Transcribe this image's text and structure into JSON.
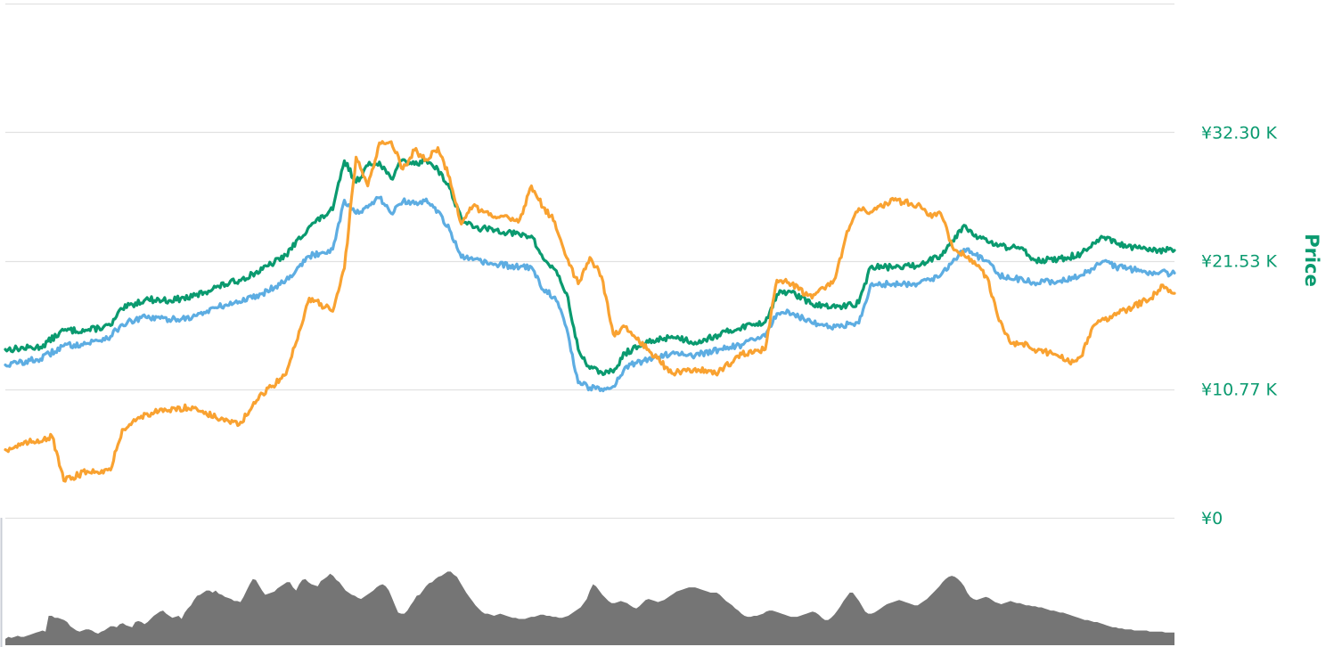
{
  "chart_data": {
    "type": "line",
    "ylabel": "Price",
    "ylim": [
      0,
      43070
    ],
    "yticks": [
      {
        "value": 0,
        "label": "¥0"
      },
      {
        "value": 10770,
        "label": "¥10.77 K"
      },
      {
        "value": 21530,
        "label": "¥21.53 K"
      },
      {
        "value": 32300,
        "label": "¥32.30 K"
      }
    ],
    "colors": {
      "axis": "#0a9a6f",
      "grid": "#e1e1e1",
      "volume": "#757575"
    },
    "x_index_range": [
      0,
      100
    ],
    "series": [
      {
        "color": "#0a9a6f",
        "points": [
          [
            0,
            14100
          ],
          [
            3,
            14300
          ],
          [
            5,
            15700
          ],
          [
            7,
            15700
          ],
          [
            9,
            16100
          ],
          [
            10,
            17500
          ],
          [
            12,
            18300
          ],
          [
            14,
            18200
          ],
          [
            16,
            18500
          ],
          [
            18,
            19300
          ],
          [
            20,
            19900
          ],
          [
            22,
            20800
          ],
          [
            24,
            22000
          ],
          [
            26,
            24400
          ],
          [
            28,
            25800
          ],
          [
            29,
            29900
          ],
          [
            30,
            28100
          ],
          [
            31,
            29500
          ],
          [
            32,
            29800
          ],
          [
            33,
            28400
          ],
          [
            34,
            30000
          ],
          [
            35,
            29600
          ],
          [
            36,
            30000
          ],
          [
            37,
            29200
          ],
          [
            38,
            27600
          ],
          [
            39,
            25100
          ],
          [
            40,
            24300
          ],
          [
            42,
            24100
          ],
          [
            44,
            23700
          ],
          [
            45,
            23600
          ],
          [
            46,
            21700
          ],
          [
            47,
            20800
          ],
          [
            48,
            18800
          ],
          [
            49,
            14100
          ],
          [
            50,
            12500
          ],
          [
            51,
            12200
          ],
          [
            52,
            12200
          ],
          [
            53,
            13800
          ],
          [
            55,
            14700
          ],
          [
            57,
            15200
          ],
          [
            59,
            14700
          ],
          [
            61,
            15300
          ],
          [
            63,
            16000
          ],
          [
            65,
            16400
          ],
          [
            66,
            18700
          ],
          [
            67,
            19000
          ],
          [
            69,
            17900
          ],
          [
            71,
            17600
          ],
          [
            73,
            18000
          ],
          [
            74,
            21000
          ],
          [
            76,
            21000
          ],
          [
            78,
            21100
          ],
          [
            79,
            21600
          ],
          [
            80,
            22000
          ],
          [
            81,
            23200
          ],
          [
            82,
            24500
          ],
          [
            83,
            23700
          ],
          [
            84,
            23100
          ],
          [
            85,
            22800
          ],
          [
            86,
            22600
          ],
          [
            87,
            22600
          ],
          [
            88,
            21600
          ],
          [
            90,
            21600
          ],
          [
            92,
            22100
          ],
          [
            94,
            23500
          ],
          [
            95,
            23000
          ],
          [
            96,
            22700
          ],
          [
            98,
            22400
          ],
          [
            100,
            22400
          ]
        ]
      },
      {
        "color": "#5dade2",
        "points": [
          [
            0,
            12800
          ],
          [
            3,
            13300
          ],
          [
            5,
            14400
          ],
          [
            7,
            14600
          ],
          [
            9,
            15200
          ],
          [
            10,
            16200
          ],
          [
            12,
            16800
          ],
          [
            14,
            16600
          ],
          [
            16,
            16800
          ],
          [
            18,
            17600
          ],
          [
            20,
            18100
          ],
          [
            22,
            18800
          ],
          [
            24,
            19900
          ],
          [
            26,
            21900
          ],
          [
            28,
            22500
          ],
          [
            29,
            26600
          ],
          [
            30,
            25500
          ],
          [
            31,
            26000
          ],
          [
            32,
            26800
          ],
          [
            33,
            25500
          ],
          [
            34,
            26500
          ],
          [
            35,
            26300
          ],
          [
            36,
            26700
          ],
          [
            37,
            25700
          ],
          [
            38,
            24100
          ],
          [
            39,
            21800
          ],
          [
            40,
            21600
          ],
          [
            42,
            21200
          ],
          [
            44,
            21000
          ],
          [
            45,
            21000
          ],
          [
            46,
            19100
          ],
          [
            47,
            18500
          ],
          [
            48,
            15900
          ],
          [
            49,
            11300
          ],
          [
            50,
            10900
          ],
          [
            51,
            10800
          ],
          [
            52,
            11000
          ],
          [
            53,
            12600
          ],
          [
            55,
            13300
          ],
          [
            57,
            13800
          ],
          [
            59,
            13600
          ],
          [
            61,
            14100
          ],
          [
            63,
            14500
          ],
          [
            65,
            15200
          ],
          [
            66,
            17100
          ],
          [
            67,
            17300
          ],
          [
            69,
            16300
          ],
          [
            71,
            16000
          ],
          [
            73,
            16300
          ],
          [
            74,
            19500
          ],
          [
            76,
            19600
          ],
          [
            78,
            19600
          ],
          [
            79,
            20000
          ],
          [
            80,
            20300
          ],
          [
            81,
            21400
          ],
          [
            82,
            22500
          ],
          [
            83,
            22000
          ],
          [
            84,
            21500
          ],
          [
            85,
            20300
          ],
          [
            86,
            20000
          ],
          [
            87,
            20000
          ],
          [
            88,
            19700
          ],
          [
            90,
            19800
          ],
          [
            92,
            20300
          ],
          [
            94,
            21500
          ],
          [
            95,
            21000
          ],
          [
            96,
            20900
          ],
          [
            98,
            20500
          ],
          [
            100,
            20500
          ]
        ]
      },
      {
        "color": "#f9a231",
        "points": [
          [
            0,
            5700
          ],
          [
            2,
            6300
          ],
          [
            4,
            6800
          ],
          [
            5,
            3100
          ],
          [
            7,
            3900
          ],
          [
            9,
            4000
          ],
          [
            10,
            7400
          ],
          [
            12,
            8700
          ],
          [
            14,
            9000
          ],
          [
            16,
            9300
          ],
          [
            18,
            8400
          ],
          [
            20,
            7800
          ],
          [
            22,
            10400
          ],
          [
            24,
            12000
          ],
          [
            26,
            18400
          ],
          [
            28,
            17300
          ],
          [
            29,
            20900
          ],
          [
            30,
            30200
          ],
          [
            31,
            27800
          ],
          [
            32,
            31400
          ],
          [
            33,
            31500
          ],
          [
            34,
            29200
          ],
          [
            35,
            30800
          ],
          [
            36,
            30000
          ],
          [
            37,
            31000
          ],
          [
            38,
            28500
          ],
          [
            39,
            24600
          ],
          [
            40,
            26100
          ],
          [
            42,
            25100
          ],
          [
            44,
            25000
          ],
          [
            45,
            27800
          ],
          [
            46,
            26000
          ],
          [
            47,
            24800
          ],
          [
            48,
            21800
          ],
          [
            49,
            19600
          ],
          [
            50,
            21800
          ],
          [
            51,
            20200
          ],
          [
            52,
            15400
          ],
          [
            53,
            16000
          ],
          [
            55,
            14100
          ],
          [
            57,
            12100
          ],
          [
            59,
            12500
          ],
          [
            61,
            12200
          ],
          [
            63,
            13700
          ],
          [
            65,
            14100
          ],
          [
            66,
            19900
          ],
          [
            67,
            19700
          ],
          [
            69,
            18400
          ],
          [
            71,
            20100
          ],
          [
            72,
            24000
          ],
          [
            73,
            25900
          ],
          [
            74,
            25600
          ],
          [
            76,
            26600
          ],
          [
            78,
            26200
          ],
          [
            79,
            25300
          ],
          [
            80,
            25500
          ],
          [
            81,
            22700
          ],
          [
            82,
            22000
          ],
          [
            83,
            21200
          ],
          [
            84,
            20100
          ],
          [
            85,
            16500
          ],
          [
            86,
            14600
          ],
          [
            87,
            14600
          ],
          [
            88,
            14100
          ],
          [
            90,
            13600
          ],
          [
            91,
            13000
          ],
          [
            92,
            13500
          ],
          [
            93,
            16000
          ],
          [
            94,
            16600
          ],
          [
            96,
            17500
          ],
          [
            98,
            18400
          ],
          [
            99,
            19500
          ],
          [
            100,
            18800
          ]
        ]
      }
    ],
    "volume": {
      "scale_max": 100,
      "values": [
        6,
        8,
        7,
        8,
        9,
        8,
        8,
        9,
        10,
        11,
        12,
        13,
        14,
        13,
        28,
        28,
        26,
        26,
        25,
        24,
        22,
        18,
        16,
        14,
        13,
        14,
        15,
        15,
        14,
        12,
        11,
        13,
        14,
        16,
        18,
        18,
        17,
        20,
        21,
        19,
        18,
        17,
        22,
        23,
        22,
        20,
        22,
        25,
        28,
        30,
        32,
        33,
        30,
        28,
        26,
        27,
        28,
        25,
        31,
        35,
        38,
        43,
        47,
        48,
        50,
        52,
        52,
        50,
        52,
        49,
        48,
        46,
        45,
        44,
        42,
        42,
        41,
        46,
        52,
        58,
        63,
        62,
        57,
        52,
        48,
        49,
        50,
        51,
        54,
        56,
        58,
        60,
        60,
        55,
        52,
        58,
        62,
        63,
        60,
        58,
        57,
        56,
        61,
        63,
        65,
        68,
        66,
        62,
        60,
        56,
        52,
        50,
        48,
        47,
        45,
        44,
        46,
        48,
        50,
        52,
        55,
        57,
        58,
        56,
        52,
        45,
        38,
        31,
        30,
        30,
        33,
        38,
        42,
        47,
        48,
        52,
        56,
        59,
        60,
        63,
        65,
        66,
        68,
        70,
        70,
        67,
        65,
        60,
        55,
        50,
        46,
        42,
        38,
        35,
        32,
        30,
        30,
        29,
        28,
        29,
        30,
        29,
        28,
        27,
        26,
        26,
        25,
        25,
        25,
        26,
        27,
        27,
        28,
        29,
        29,
        28,
        28,
        27,
        27,
        26,
        26,
        27,
        28,
        30,
        32,
        34,
        36,
        40,
        44,
        52,
        58,
        56,
        52,
        48,
        45,
        42,
        40,
        40,
        41,
        42,
        41,
        40,
        38,
        36,
        35,
        37,
        40,
        43,
        44,
        43,
        42,
        41,
        42,
        43,
        45,
        47,
        49,
        51,
        52,
        53,
        54,
        55,
        55,
        55,
        54,
        53,
        52,
        51,
        50,
        50,
        50,
        48,
        45,
        42,
        40,
        38,
        35,
        33,
        30,
        28,
        27,
        27,
        28,
        28,
        29,
        30,
        32,
        33,
        33,
        32,
        31,
        30,
        29,
        28,
        27,
        27,
        27,
        28,
        29,
        30,
        31,
        32,
        31,
        29,
        26,
        24,
        24,
        26,
        29,
        33,
        37,
        42,
        46,
        50,
        50,
        46,
        42,
        37,
        32,
        30,
        30,
        31,
        33,
        35,
        37,
        39,
        40,
        41,
        42,
        43,
        42,
        41,
        40,
        39,
        38,
        38,
        40,
        42,
        44,
        47,
        50,
        53,
        56,
        60,
        63,
        65,
        66,
        65,
        63,
        60,
        56,
        50,
        46,
        44,
        43,
        44,
        45,
        46,
        45,
        43,
        41,
        40,
        39,
        40,
        41,
        42,
        41,
        40,
        40,
        39,
        38,
        38,
        37,
        37,
        36,
        36,
        35,
        34,
        33,
        33,
        32,
        31,
        31,
        30,
        29,
        28,
        27,
        26,
        25,
        24,
        24,
        23,
        22,
        22,
        21,
        20,
        19,
        18,
        17,
        17,
        16,
        16,
        15,
        15,
        15,
        14,
        14,
        14,
        14,
        14,
        13,
        13,
        13,
        13,
        13,
        12,
        12,
        12,
        12
      ]
    }
  }
}
